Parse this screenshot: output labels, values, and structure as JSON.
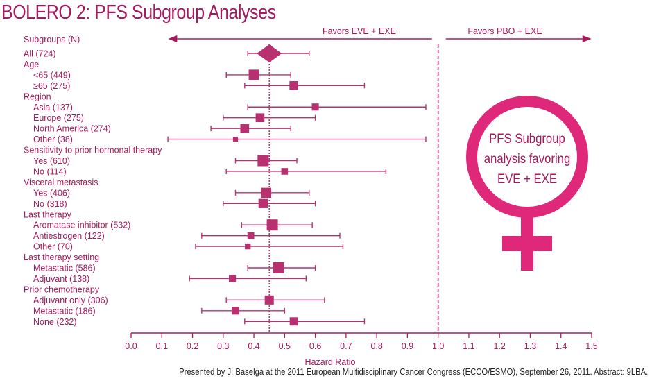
{
  "title": "BOLERO 2: PFS Subgroup Analyses",
  "footer": "Presented by J. Baselga at the 2011 European Multidisciplinary Cancer Congress (ECCO/ESMO), September 26, 2011. Abstract: 9LBA.",
  "callout": {
    "lines": [
      "PFS Subgroup",
      "analysis favoring",
      "EVE + EXE"
    ],
    "icon": "female-symbol-icon",
    "color": "#e0287a"
  },
  "colors": {
    "primary": "#a6195e",
    "marker": "#b8306f",
    "callout": "#e0287a"
  },
  "chart_data": {
    "type": "forest",
    "title": "",
    "header_label": "Subgroups (N)",
    "favors_left": "Favors EVE + EXE",
    "favors_right": "Favors PBO + EXE",
    "xlabel": "Hazard Ratio",
    "xlim": [
      0.0,
      1.5
    ],
    "xticks": [
      0.0,
      0.1,
      0.2,
      0.3,
      0.4,
      0.5,
      0.6,
      0.7,
      0.8,
      0.9,
      1.0,
      1.1,
      1.2,
      1.3,
      1.4,
      1.5
    ],
    "xtick_labels": [
      "0.0",
      "0.1",
      "0.2",
      "0.3",
      "0.4",
      "0.5",
      "0.6",
      "0.7",
      "0.8",
      "0.9",
      "1.0",
      "1.1",
      "1.2",
      "1.3",
      "1.4",
      "1.5"
    ],
    "overall_reference_hr": 0.45,
    "null_line": 1.0,
    "rows": [
      {
        "label": "All (724)",
        "type": "overall",
        "hr": 0.45,
        "lo": 0.38,
        "hi": 0.58
      },
      {
        "label": "Age",
        "type": "header"
      },
      {
        "label": "<65 (449)",
        "type": "data",
        "indent": true,
        "hr": 0.4,
        "lo": 0.31,
        "hi": 0.52
      },
      {
        "label": "≥65 (275)",
        "type": "data",
        "indent": true,
        "hr": 0.53,
        "lo": 0.37,
        "hi": 0.76
      },
      {
        "label": "Region",
        "type": "header"
      },
      {
        "label": "Asia (137)",
        "type": "data",
        "indent": true,
        "hr": 0.6,
        "lo": 0.38,
        "hi": 0.96
      },
      {
        "label": "Europe (275)",
        "type": "data",
        "indent": true,
        "hr": 0.42,
        "lo": 0.3,
        "hi": 0.6
      },
      {
        "label": "North America (274)",
        "type": "data",
        "indent": true,
        "hr": 0.37,
        "lo": 0.26,
        "hi": 0.52
      },
      {
        "label": "Other (38)",
        "type": "data",
        "indent": true,
        "hr": 0.34,
        "lo": 0.12,
        "hi": 0.96
      },
      {
        "label": "Sensitivity to prior hormonal therapy",
        "type": "header"
      },
      {
        "label": "Yes (610)",
        "type": "data",
        "indent": true,
        "hr": 0.43,
        "lo": 0.34,
        "hi": 0.54
      },
      {
        "label": "No (114)",
        "type": "data",
        "indent": true,
        "hr": 0.5,
        "lo": 0.31,
        "hi": 0.83
      },
      {
        "label": "Visceral metastasis",
        "type": "header"
      },
      {
        "label": "Yes (406)",
        "type": "data",
        "indent": true,
        "hr": 0.44,
        "lo": 0.34,
        "hi": 0.58
      },
      {
        "label": "No (318)",
        "type": "data",
        "indent": true,
        "hr": 0.43,
        "lo": 0.3,
        "hi": 0.6
      },
      {
        "label": "Last therapy",
        "type": "header"
      },
      {
        "label": "Aromatase inhibitor (532)",
        "type": "data",
        "indent": true,
        "hr": 0.46,
        "lo": 0.36,
        "hi": 0.59
      },
      {
        "label": "Antiestrogen (122)",
        "type": "data",
        "indent": true,
        "hr": 0.39,
        "lo": 0.23,
        "hi": 0.68
      },
      {
        "label": "Other (70)",
        "type": "data",
        "indent": true,
        "hr": 0.38,
        "lo": 0.21,
        "hi": 0.69
      },
      {
        "label": "Last therapy setting",
        "type": "header"
      },
      {
        "label": "Metastatic (586)",
        "type": "data",
        "indent": true,
        "hr": 0.48,
        "lo": 0.38,
        "hi": 0.6
      },
      {
        "label": "Adjuvant (138)",
        "type": "data",
        "indent": true,
        "hr": 0.33,
        "lo": 0.19,
        "hi": 0.57
      },
      {
        "label": "Prior chemotherapy",
        "type": "header"
      },
      {
        "label": "Adjuvant only (306)",
        "type": "data",
        "indent": true,
        "hr": 0.45,
        "lo": 0.31,
        "hi": 0.63
      },
      {
        "label": "Metastatic (186)",
        "type": "data",
        "indent": true,
        "hr": 0.34,
        "lo": 0.23,
        "hi": 0.5
      },
      {
        "label": "None (232)",
        "type": "data",
        "indent": true,
        "hr": 0.53,
        "lo": 0.37,
        "hi": 0.76
      }
    ]
  }
}
